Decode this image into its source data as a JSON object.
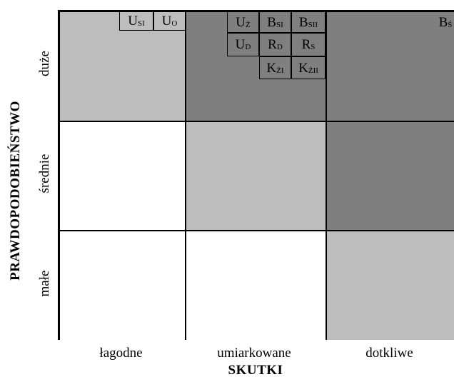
{
  "axes": {
    "y_title": "PRAWDOPODOBIEŃSTWO",
    "x_title": "SKUTKI",
    "rows": [
      "duże",
      "średnie",
      "małe"
    ],
    "cols": [
      "łagodne",
      "umiarkowane",
      "dotkliwe"
    ]
  },
  "colors": {
    "light": "#bdbdbd",
    "dark": "#7f7f7f",
    "white": "#ffffff"
  },
  "matrix_levels": {
    "duże": [
      "light",
      "dark",
      "dark"
    ],
    "średnie": [
      "white",
      "light",
      "dark"
    ],
    "małe": [
      "white",
      "white",
      "light"
    ]
  },
  "risks": {
    "U_SI": {
      "main": "U",
      "sub": "SI"
    },
    "U_O": {
      "main": "U",
      "sub": "O"
    },
    "U_Z": {
      "main": "U",
      "sub": "Ż"
    },
    "B_SI": {
      "main": "B",
      "sub": "SI"
    },
    "B_SII": {
      "main": "B",
      "sub": "SII"
    },
    "B_S": {
      "main": "B",
      "sub": "Ś"
    },
    "U_D": {
      "main": "U",
      "sub": "D"
    },
    "R_D": {
      "main": "R",
      "sub": "D"
    },
    "R_S": {
      "main": "R",
      "sub": "S"
    },
    "K_ZI": {
      "main": "K",
      "sub": "ŻI"
    },
    "K_ZII": {
      "main": "K",
      "sub": "ŻII"
    }
  }
}
